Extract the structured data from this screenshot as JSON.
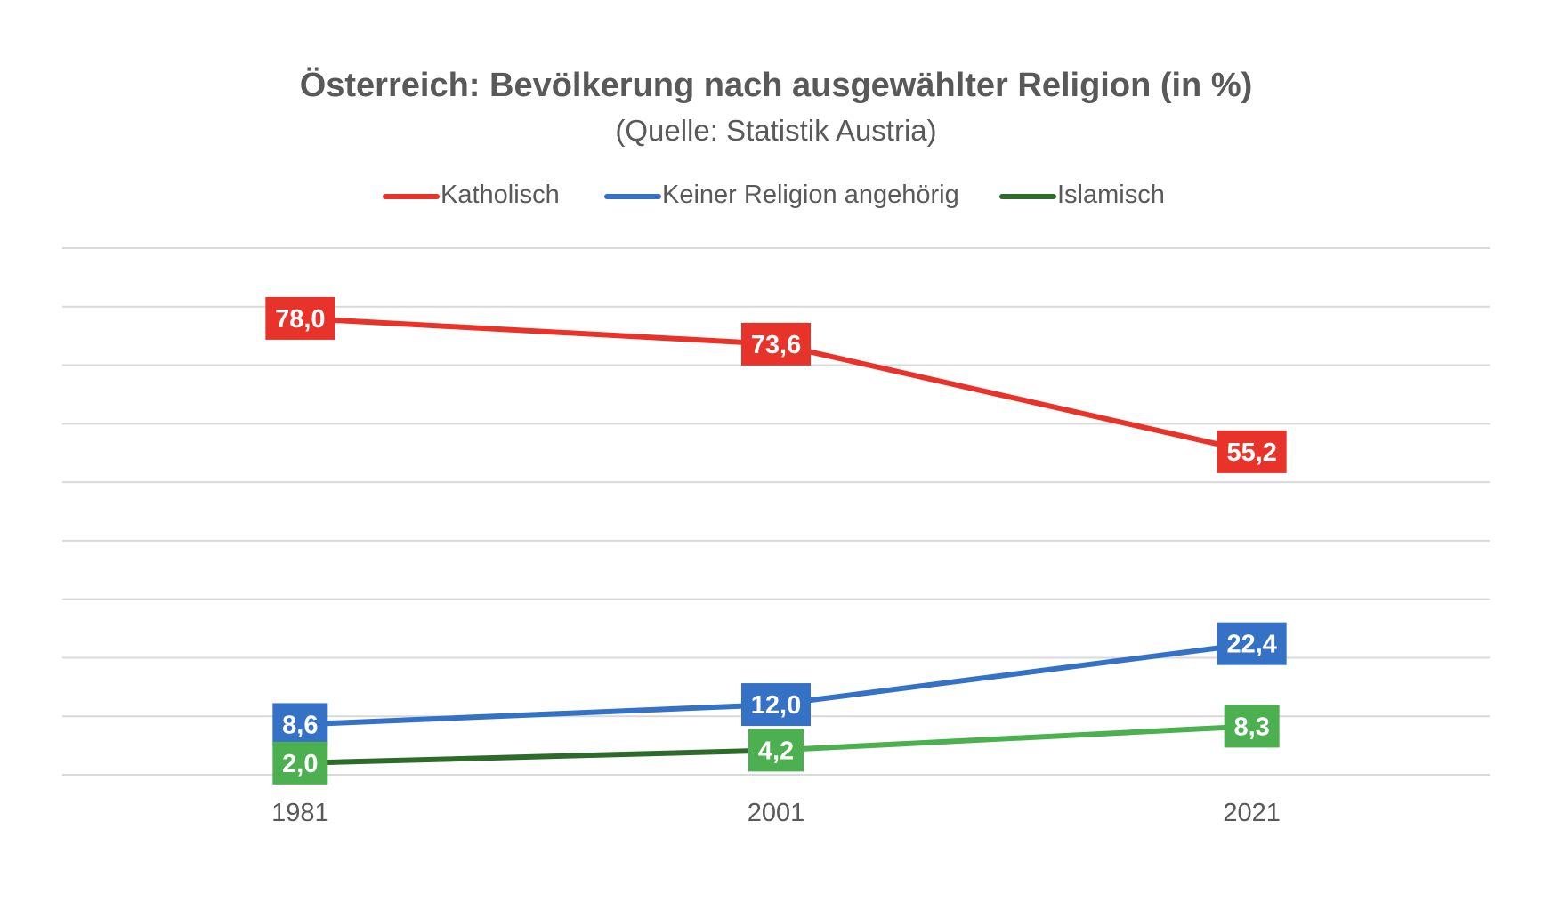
{
  "chart_data": {
    "type": "line",
    "title": "Österreich: Bevölkerung nach ausgewählter Religion (in %)",
    "subtitle": "(Quelle: Statistik Austria)",
    "x": [
      "1981",
      "2001",
      "2021"
    ],
    "ylim": [
      0,
      90
    ],
    "y_gridline_step": 10,
    "y_tick_labels_visible": false,
    "grid": true,
    "legend_position": "top",
    "series": [
      {
        "name": "Katholisch",
        "color": "#e8332a",
        "values": [
          78.0,
          73.6,
          55.2
        ],
        "labels": [
          "78,0",
          "73,6",
          "55,2"
        ]
      },
      {
        "name": "Keiner Religion angehörig",
        "color": "#3571c4",
        "values": [
          8.6,
          12.0,
          22.4
        ],
        "labels": [
          "8,6",
          "12,0",
          "22,4"
        ]
      },
      {
        "name": "Islamisch",
        "color": "#4caf50",
        "legend_color": "#2e6b2a",
        "first_segment_color": "#2e6b2a",
        "values": [
          2.0,
          4.2,
          8.3
        ],
        "labels": [
          "2,0",
          "4,2",
          "8,3"
        ]
      }
    ]
  }
}
